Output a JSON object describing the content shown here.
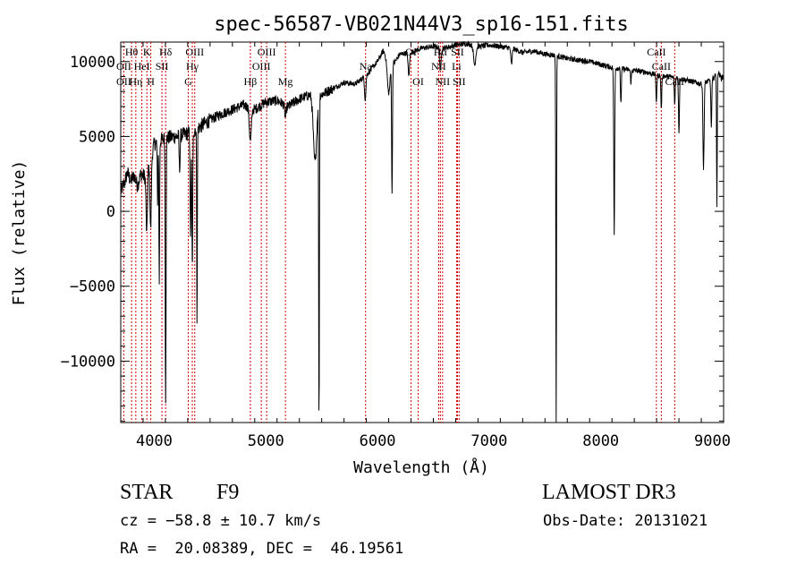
{
  "chart_data": {
    "type": "line",
    "title": "spec-56587-VB021N44V3_sp16-151.fits",
    "xlabel": "Wavelength (Å)",
    "ylabel": "Flux (relative)",
    "xlim": [
      3700,
      9100
    ],
    "ylim": [
      -14100,
      11300
    ],
    "xticks": [
      4000,
      5000,
      6000,
      7000,
      8000,
      9000
    ],
    "xtick_labels": [
      "4000",
      "5000",
      "6000",
      "7000",
      "8000",
      "9000"
    ],
    "yticks": [
      -10000,
      -5000,
      0,
      5000,
      10000
    ],
    "ytick_labels": [
      "−10000",
      "−5000",
      "0",
      "5000",
      "10000"
    ],
    "grid": false,
    "line_color": "#000000",
    "marker_color": "#cc0000",
    "continuum": [
      [
        3700,
        1300
      ],
      [
        3730,
        1800
      ],
      [
        3760,
        2600
      ],
      [
        3790,
        2000
      ],
      [
        3820,
        2400
      ],
      [
        3850,
        1700
      ],
      [
        3880,
        2500
      ],
      [
        3920,
        2300
      ],
      [
        3960,
        3300
      ],
      [
        4000,
        4500
      ],
      [
        4050,
        4700
      ],
      [
        4100,
        4900
      ],
      [
        4200,
        5000
      ],
      [
        4300,
        5200
      ],
      [
        4400,
        5600
      ],
      [
        4500,
        6100
      ],
      [
        4600,
        6500
      ],
      [
        4700,
        6800
      ],
      [
        4800,
        7100
      ],
      [
        4900,
        6800
      ],
      [
        5000,
        7300
      ],
      [
        5100,
        7400
      ],
      [
        5200,
        7000
      ],
      [
        5300,
        7500
      ],
      [
        5400,
        7800
      ],
      [
        5500,
        7800
      ],
      [
        5600,
        8200
      ],
      [
        5700,
        8600
      ],
      [
        5800,
        8500
      ],
      [
        5900,
        9100
      ],
      [
        6000,
        10000
      ],
      [
        6050,
        10700
      ],
      [
        6100,
        10200
      ],
      [
        6150,
        9900
      ],
      [
        6200,
        10500
      ],
      [
        6300,
        10600
      ],
      [
        6400,
        10900
      ],
      [
        6500,
        11000
      ],
      [
        6600,
        10900
      ],
      [
        6700,
        11100
      ],
      [
        6800,
        11200
      ],
      [
        6900,
        11000
      ],
      [
        7000,
        11100
      ],
      [
        7100,
        11000
      ],
      [
        7200,
        10900
      ],
      [
        7300,
        10600
      ],
      [
        7400,
        10700
      ],
      [
        7500,
        10500
      ],
      [
        7600,
        10400
      ],
      [
        7700,
        10200
      ],
      [
        7800,
        10100
      ],
      [
        7900,
        10000
      ],
      [
        8000,
        9800
      ],
      [
        8100,
        9600
      ],
      [
        8200,
        9500
      ],
      [
        8300,
        9400
      ],
      [
        8400,
        9300
      ],
      [
        8500,
        9100
      ],
      [
        8600,
        9000
      ],
      [
        8700,
        8900
      ],
      [
        8800,
        8700
      ],
      [
        8900,
        8500
      ],
      [
        9000,
        8800
      ],
      [
        9050,
        9300
      ],
      [
        9080,
        8900
      ],
      [
        9100,
        9000
      ]
    ],
    "absorption": [
      [
        3933,
        -1500,
        12
      ],
      [
        3968,
        -1200,
        12
      ],
      [
        4030,
        200,
        6
      ],
      [
        4045,
        -4700,
        6
      ],
      [
        4102,
        -12600,
        7
      ],
      [
        4227,
        2800,
        8
      ],
      [
        4325,
        -2000,
        8
      ],
      [
        4341,
        -3700,
        8
      ],
      [
        4383,
        -7200,
        6
      ],
      [
        4861,
        4700,
        18
      ],
      [
        5175,
        6300,
        14
      ],
      [
        5440,
        3300,
        30
      ],
      [
        5476,
        -13900,
        6
      ],
      [
        5890,
        7500,
        12
      ],
      [
        6100,
        7900,
        25
      ],
      [
        6130,
        1200,
        8
      ],
      [
        6280,
        9000,
        12
      ],
      [
        6563,
        9300,
        12
      ],
      [
        6870,
        9800,
        20
      ],
      [
        7600,
        -14100,
        6
      ],
      [
        7200,
        9800,
        12
      ],
      [
        8120,
        -1600,
        8
      ],
      [
        8180,
        7200,
        8
      ],
      [
        8270,
        8600,
        8
      ],
      [
        8498,
        7300,
        8
      ],
      [
        8542,
        6800,
        8
      ],
      [
        8662,
        7100,
        8
      ],
      [
        8700,
        5200,
        8
      ],
      [
        8920,
        2800,
        10
      ],
      [
        8990,
        5600,
        8
      ],
      [
        9040,
        200,
        6
      ]
    ],
    "lines": [
      {
        "label": "OII",
        "wave": 3727,
        "row": 2
      },
      {
        "label": "Hθ",
        "wave": 3797,
        "row": 0
      },
      {
        "label": "OII",
        "wave": 3727,
        "row": 1
      },
      {
        "label": "Hη",
        "wave": 3835,
        "row": 2
      },
      {
        "label": "HeI",
        "wave": 3889,
        "row": 1
      },
      {
        "label": "K",
        "wave": 3934,
        "row": 0
      },
      {
        "label": "H",
        "wave": 3969,
        "row": 2
      },
      {
        "label": "SII",
        "wave": 4069,
        "row": 1
      },
      {
        "label": "Hδ",
        "wave": 4102,
        "row": 0
      },
      {
        "label": "OIII",
        "wave": 4363,
        "row": 0
      },
      {
        "label": "Hγ",
        "wave": 4341,
        "row": 1
      },
      {
        "label": "G",
        "wave": 4305,
        "row": 2
      },
      {
        "label": "Hβ",
        "wave": 4861,
        "row": 2
      },
      {
        "label": "OIII",
        "wave": 4959,
        "row": 1
      },
      {
        "label": "OIII",
        "wave": 5007,
        "row": 0
      },
      {
        "label": "Mg",
        "wave": 5175,
        "row": 2
      },
      {
        "label": "Na",
        "wave": 5893,
        "row": 1
      },
      {
        "label": "OI",
        "wave": 6300,
        "row": 0
      },
      {
        "label": "OI",
        "wave": 6364,
        "row": 2
      },
      {
        "label": "Hα",
        "wave": 6563,
        "row": 0
      },
      {
        "label": "NII",
        "wave": 6548,
        "row": 1
      },
      {
        "label": "NII",
        "wave": 6583,
        "row": 2
      },
      {
        "label": "SII",
        "wave": 6716,
        "row": 0
      },
      {
        "label": "Li",
        "wave": 6708,
        "row": 1
      },
      {
        "label": "SII",
        "wave": 6731,
        "row": 2
      },
      {
        "label": "CaII",
        "wave": 8498,
        "row": 0
      },
      {
        "label": "CaII",
        "wave": 8542,
        "row": 1
      },
      {
        "label": "CaII",
        "wave": 8662,
        "row": 2
      }
    ]
  },
  "info": {
    "object_class": "STAR",
    "subclass": "F9",
    "survey": "LAMOST DR3",
    "redshift": "cz = −58.8 ± 10.7 km/s",
    "obs_date": "Obs-Date: 20131021",
    "coords": "RA =  20.08389, DEC =  46.19561"
  }
}
